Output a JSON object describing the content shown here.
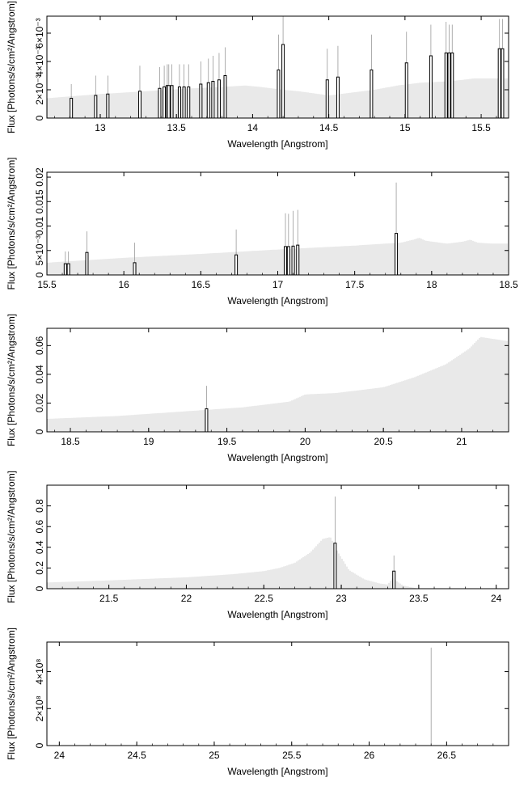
{
  "page": {
    "background": "#ffffff"
  },
  "style": {
    "continuum_color": "#c8c8c8",
    "line_color": "#000000",
    "line_thin_color": "#9a9a9a"
  },
  "chart_data": [
    {
      "type": "bar",
      "ylabel": "Flux [Photons/s/cm²/Angstrom]",
      "xlabel": "Wavelength [Angstrom]",
      "xlim": [
        12.65,
        15.68
      ],
      "ylim": [
        0,
        0.0072
      ],
      "xticks": [
        13,
        13.5,
        14,
        14.5,
        15,
        15.5
      ],
      "xtick_labels": [
        "13",
        "13.5",
        "14",
        "14.5",
        "15",
        "15.5"
      ],
      "yticks": [
        0,
        0.002,
        0.004,
        0.006
      ],
      "ytick_labels": [
        "0",
        "2×10⁻³",
        "4×10⁻³",
        "6×10⁻³"
      ],
      "continuum": {
        "x": [
          12.65,
          13.0,
          13.3,
          13.6,
          13.8,
          13.95,
          14.05,
          14.2,
          14.3,
          14.5,
          14.8,
          14.95,
          15.1,
          15.3,
          15.45,
          15.68
        ],
        "y": [
          0.0014,
          0.0017,
          0.0019,
          0.0021,
          0.0022,
          0.0023,
          0.0022,
          0.002,
          0.0019,
          0.0016,
          0.002,
          0.0023,
          0.0025,
          0.0026,
          0.0028,
          0.0028
        ]
      },
      "lines": {
        "x": [
          12.81,
          12.97,
          13.05,
          13.26,
          13.39,
          13.42,
          13.44,
          13.45,
          13.47,
          13.52,
          13.55,
          13.58,
          13.66,
          13.71,
          13.74,
          13.78,
          13.82,
          14.17,
          14.2,
          14.49,
          14.56,
          14.78,
          15.01,
          15.17,
          15.27,
          15.29,
          15.31,
          15.62,
          15.64
        ],
        "bar": [
          0.0014,
          0.0016,
          0.0017,
          0.0019,
          0.0021,
          0.0022,
          0.0023,
          0.0023,
          0.0023,
          0.0022,
          0.0022,
          0.0022,
          0.0024,
          0.0025,
          0.0026,
          0.0027,
          0.003,
          0.0034,
          0.0052,
          0.0027,
          0.0029,
          0.0034,
          0.0039,
          0.0044,
          0.0046,
          0.0046,
          0.0046,
          0.0049,
          0.0049
        ],
        "peak": [
          0.0024,
          0.003,
          0.003,
          0.0037,
          0.0036,
          0.0037,
          0.0038,
          0.0038,
          0.0038,
          0.0038,
          0.0038,
          0.0038,
          0.004,
          0.0042,
          0.0044,
          0.0046,
          0.005,
          0.0059,
          0.0081,
          0.0049,
          0.0051,
          0.0059,
          0.0061,
          0.0066,
          0.0068,
          0.0066,
          0.0066,
          0.007,
          0.007
        ]
      }
    },
    {
      "type": "bar",
      "ylabel": "Flux [Photons/s/cm²/Angstrom]",
      "xlabel": "Wavelength [Angstrom]",
      "xlim": [
        15.5,
        18.5
      ],
      "ylim": [
        0,
        0.021
      ],
      "xticks": [
        15.5,
        16,
        16.5,
        17,
        17.5,
        18,
        18.5
      ],
      "xtick_labels": [
        "15.5",
        "16",
        "16.5",
        "17",
        "17.5",
        "18",
        "18.5"
      ],
      "yticks": [
        0,
        0.005,
        0.01,
        0.015,
        0.02
      ],
      "ytick_labels": [
        "0",
        "5×10⁻³",
        "0.01",
        "0.015",
        "0.02"
      ],
      "continuum": {
        "x": [
          15.5,
          16.0,
          16.5,
          17.0,
          17.5,
          17.8,
          17.88,
          17.92,
          17.96,
          18.1,
          18.2,
          18.25,
          18.3,
          18.4,
          18.5
        ],
        "y": [
          0.0025,
          0.0035,
          0.0043,
          0.0052,
          0.006,
          0.0066,
          0.0072,
          0.0076,
          0.007,
          0.0064,
          0.0068,
          0.0072,
          0.0066,
          0.0064,
          0.0064
        ]
      },
      "lines": {
        "x": [
          15.62,
          15.64,
          15.76,
          16.07,
          16.73,
          17.05,
          17.07,
          17.1,
          17.13,
          17.77
        ],
        "bar": [
          0.0023,
          0.0023,
          0.0046,
          0.0025,
          0.0041,
          0.0058,
          0.0058,
          0.0059,
          0.0061,
          0.0085
        ],
        "peak": [
          0.0048,
          0.0048,
          0.0089,
          0.0066,
          0.0093,
          0.0126,
          0.0125,
          0.0131,
          0.0133,
          0.0189
        ]
      }
    },
    {
      "type": "bar",
      "ylabel": "Flux [Photons/s/cm²/Angstrom]",
      "xlabel": "Wavelength [Angstrom]",
      "xlim": [
        18.35,
        21.3
      ],
      "ylim": [
        0,
        0.072
      ],
      "xticks": [
        18.5,
        19,
        19.5,
        20,
        20.5,
        21
      ],
      "xtick_labels": [
        "18.5",
        "19",
        "19.5",
        "20",
        "20.5",
        "21"
      ],
      "yticks": [
        0,
        0.02,
        0.04,
        0.06
      ],
      "ytick_labels": [
        "0",
        "0.02",
        "0.04",
        "0.06"
      ],
      "continuum": {
        "x": [
          18.35,
          18.8,
          19.2,
          19.6,
          19.9,
          20.0,
          20.2,
          20.5,
          20.7,
          20.9,
          21.05,
          21.12,
          21.18,
          21.3
        ],
        "y": [
          0.009,
          0.011,
          0.014,
          0.017,
          0.021,
          0.026,
          0.027,
          0.031,
          0.038,
          0.047,
          0.058,
          0.066,
          0.065,
          0.063
        ]
      },
      "lines": {
        "x": [
          19.37
        ],
        "bar": [
          0.016
        ],
        "peak": [
          0.032
        ]
      }
    },
    {
      "type": "bar",
      "ylabel": "Flux [Photons/s/cm²/Angstrom]",
      "xlabel": "Wavelength [Angstrom]",
      "xlim": [
        21.1,
        24.08
      ],
      "ylim": [
        0,
        1.0
      ],
      "xticks": [
        21.5,
        22,
        22.5,
        23,
        23.5,
        24
      ],
      "xtick_labels": [
        "21.5",
        "22",
        "22.5",
        "23",
        "23.5",
        "24"
      ],
      "yticks": [
        0,
        0.2,
        0.4,
        0.6,
        0.8
      ],
      "ytick_labels": [
        "0",
        "0.2",
        "0.4",
        "0.6",
        "0.8"
      ],
      "continuum": {
        "x": [
          21.1,
          21.5,
          22.0,
          22.3,
          22.5,
          22.6,
          22.7,
          22.8,
          22.88,
          22.93,
          22.98,
          23.05,
          23.15,
          23.25,
          23.3,
          23.33,
          23.4,
          23.5,
          24.08
        ],
        "y": [
          0.06,
          0.08,
          0.11,
          0.14,
          0.17,
          0.2,
          0.25,
          0.35,
          0.48,
          0.5,
          0.35,
          0.18,
          0.09,
          0.05,
          0.04,
          0.1,
          0.03,
          0.0,
          0.0
        ]
      },
      "lines": {
        "x": [
          22.96,
          23.34
        ],
        "bar": [
          0.44,
          0.17
        ],
        "peak": [
          0.89,
          0.32
        ]
      }
    },
    {
      "type": "bar",
      "ylabel": "Flux [Photons/s/cm²/Angstrom]",
      "xlabel": "Wavelength [Angstrom]",
      "xlim": [
        23.92,
        26.9
      ],
      "ylim": [
        0,
        560000000
      ],
      "xticks": [
        24,
        24.5,
        25,
        25.5,
        26,
        26.5
      ],
      "xtick_labels": [
        "24",
        "24.5",
        "25",
        "25.5",
        "26",
        "26.5"
      ],
      "yticks": [
        0,
        200000000,
        400000000
      ],
      "ytick_labels": [
        "0",
        "2×10⁸",
        "4×10⁸"
      ],
      "continuum": {
        "x": [
          23.92,
          26.9
        ],
        "y": [
          0,
          0
        ]
      },
      "lines": {
        "x": [
          26.4
        ],
        "bar": [
          0
        ],
        "peak": [
          530000000
        ]
      }
    }
  ]
}
